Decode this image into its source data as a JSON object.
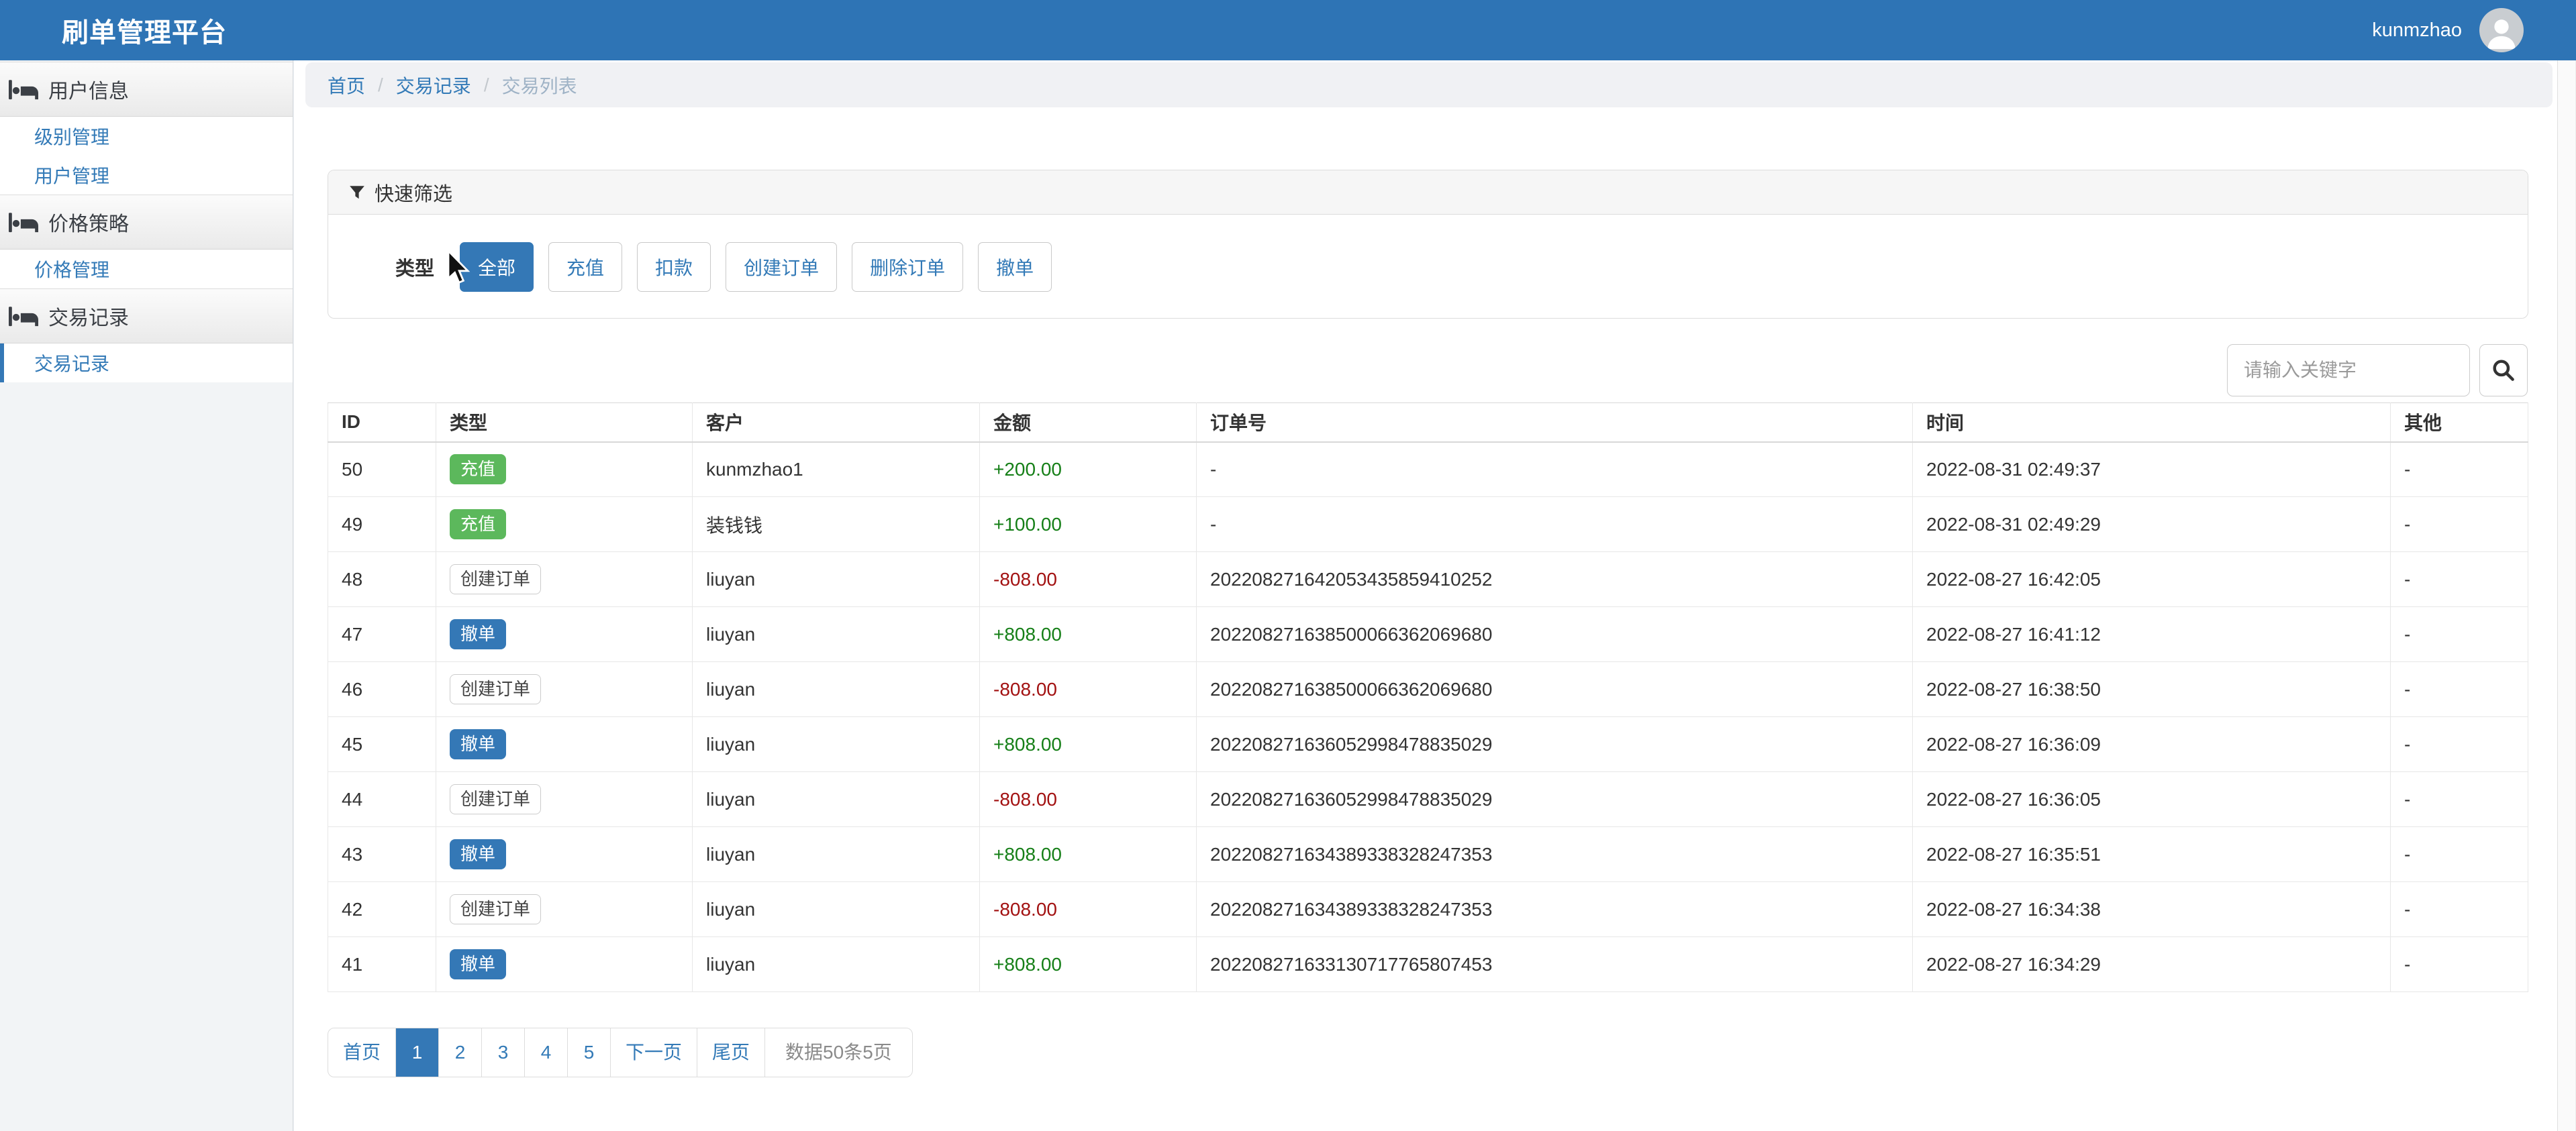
{
  "header": {
    "title": "刷单管理平台",
    "username": "kunmzhao"
  },
  "sidebar": {
    "sections": [
      {
        "name": "user-info",
        "label": "用户信息",
        "items": [
          {
            "name": "level-management",
            "label": "级别管理",
            "active": false
          },
          {
            "name": "user-management",
            "label": "用户管理",
            "active": false
          }
        ]
      },
      {
        "name": "price-strategy",
        "label": "价格策略",
        "items": [
          {
            "name": "price-management",
            "label": "价格管理",
            "active": false
          }
        ]
      },
      {
        "name": "transaction-records",
        "label": "交易记录",
        "items": [
          {
            "name": "transaction-records",
            "label": "交易记录",
            "active": true
          }
        ]
      }
    ]
  },
  "breadcrumb": {
    "items": [
      "首页",
      "交易记录",
      "交易列表"
    ]
  },
  "filter": {
    "title": "快速筛选",
    "type_label": "类型",
    "options": [
      {
        "name": "all",
        "label": "全部",
        "active": true
      },
      {
        "name": "recharge",
        "label": "充值",
        "active": false
      },
      {
        "name": "deduct",
        "label": "扣款",
        "active": false
      },
      {
        "name": "create-order",
        "label": "创建订单",
        "active": false
      },
      {
        "name": "delete-order",
        "label": "删除订单",
        "active": false
      },
      {
        "name": "cancel-order",
        "label": "撤单",
        "active": false
      }
    ]
  },
  "search": {
    "placeholder": "请输入关键字"
  },
  "table": {
    "columns": [
      {
        "key": "id",
        "label": "ID"
      },
      {
        "key": "type",
        "label": "类型"
      },
      {
        "key": "customer",
        "label": "客户"
      },
      {
        "key": "amount",
        "label": "金额"
      },
      {
        "key": "order-no",
        "label": "订单号"
      },
      {
        "key": "time",
        "label": "时间"
      },
      {
        "key": "other",
        "label": "其他"
      }
    ],
    "rows": [
      {
        "id": "50",
        "type": "充值",
        "type_style": "green",
        "customer": "kunmzhao1",
        "amount": "+200.00",
        "amount_color": "green",
        "order_no": "-",
        "time": "2022-08-31 02:49:37",
        "other": "-"
      },
      {
        "id": "49",
        "type": "充值",
        "type_style": "green",
        "customer": "装钱钱",
        "amount": "+100.00",
        "amount_color": "green",
        "order_no": "-",
        "time": "2022-08-31 02:49:29",
        "other": "-"
      },
      {
        "id": "48",
        "type": "创建订单",
        "type_style": "outline",
        "customer": "liuyan",
        "amount": "-808.00",
        "amount_color": "red",
        "order_no": "202208271642053435859410252",
        "time": "2022-08-27 16:42:05",
        "other": "-"
      },
      {
        "id": "47",
        "type": "撤单",
        "type_style": "blue",
        "customer": "liuyan",
        "amount": "+808.00",
        "amount_color": "green",
        "order_no": "202208271638500066362069680",
        "time": "2022-08-27 16:41:12",
        "other": "-"
      },
      {
        "id": "46",
        "type": "创建订单",
        "type_style": "outline",
        "customer": "liuyan",
        "amount": "-808.00",
        "amount_color": "red",
        "order_no": "202208271638500066362069680",
        "time": "2022-08-27 16:38:50",
        "other": "-"
      },
      {
        "id": "45",
        "type": "撤单",
        "type_style": "blue",
        "customer": "liuyan",
        "amount": "+808.00",
        "amount_color": "green",
        "order_no": "202208271636052998478835029",
        "time": "2022-08-27 16:36:09",
        "other": "-"
      },
      {
        "id": "44",
        "type": "创建订单",
        "type_style": "outline",
        "customer": "liuyan",
        "amount": "-808.00",
        "amount_color": "red",
        "order_no": "202208271636052998478835029",
        "time": "2022-08-27 16:36:05",
        "other": "-"
      },
      {
        "id": "43",
        "type": "撤单",
        "type_style": "blue",
        "customer": "liuyan",
        "amount": "+808.00",
        "amount_color": "green",
        "order_no": "202208271634389338328247353",
        "time": "2022-08-27 16:35:51",
        "other": "-"
      },
      {
        "id": "42",
        "type": "创建订单",
        "type_style": "outline",
        "customer": "liuyan",
        "amount": "-808.00",
        "amount_color": "red",
        "order_no": "202208271634389338328247353",
        "time": "2022-08-27 16:34:38",
        "other": "-"
      },
      {
        "id": "41",
        "type": "撤单",
        "type_style": "blue",
        "customer": "liuyan",
        "amount": "+808.00",
        "amount_color": "green",
        "order_no": "202208271633130717765807453",
        "time": "2022-08-27 16:34:29",
        "other": "-"
      }
    ]
  },
  "pagination": {
    "items": [
      {
        "name": "first-page",
        "label": "首页",
        "active": false,
        "info": false
      },
      {
        "name": "page-1",
        "label": "1",
        "active": true,
        "info": false
      },
      {
        "name": "page-2",
        "label": "2",
        "active": false,
        "info": false
      },
      {
        "name": "page-3",
        "label": "3",
        "active": false,
        "info": false
      },
      {
        "name": "page-4",
        "label": "4",
        "active": false,
        "info": false
      },
      {
        "name": "page-5",
        "label": "5",
        "active": false,
        "info": false
      },
      {
        "name": "next-page",
        "label": "下一页",
        "active": false,
        "info": false
      },
      {
        "name": "last-page",
        "label": "尾页",
        "active": false,
        "info": false
      },
      {
        "name": "data-info",
        "label": "数据50条5页",
        "active": false,
        "info": true
      }
    ]
  },
  "colors": {
    "topbar": "#2e74b5",
    "accent": "#3478b6",
    "link": "#337ab7",
    "green_badge": "#5cb85c",
    "amount_green": "#157f17",
    "amount_red": "#a21111"
  }
}
